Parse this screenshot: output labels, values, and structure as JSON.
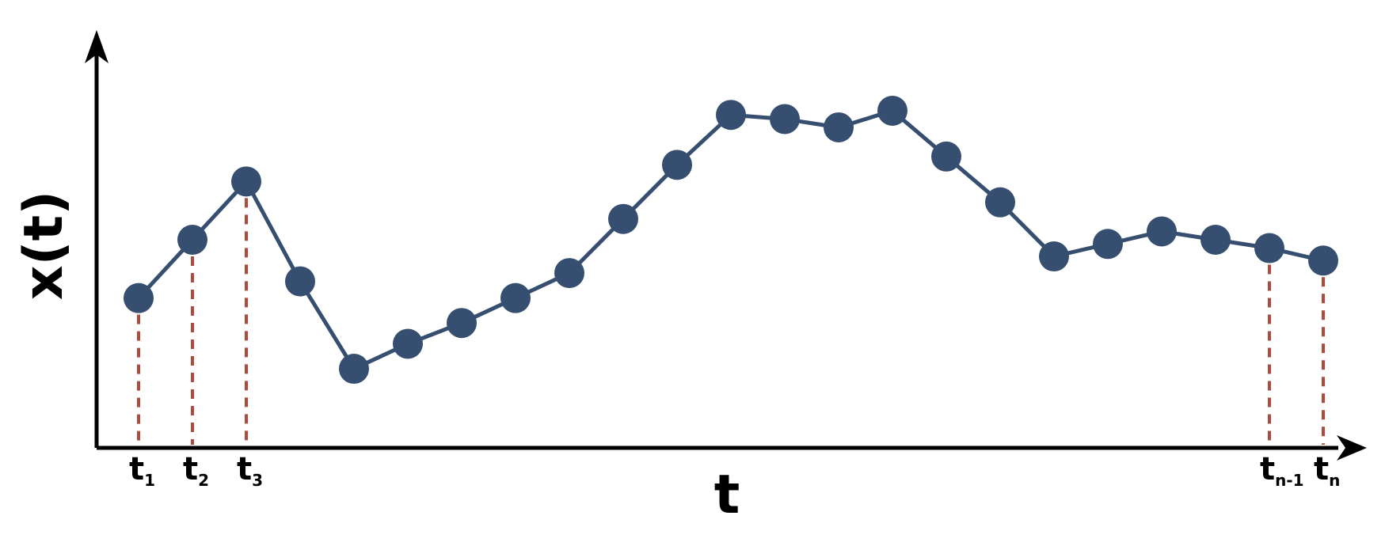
{
  "chart_data": {
    "type": "line",
    "xlabel": "t",
    "ylabel": "x(t)",
    "grid": false,
    "legend": "none",
    "ylim": [
      0,
      100
    ],
    "series": [
      {
        "values": [
          36,
          50,
          64,
          40,
          19,
          25,
          30,
          36,
          42,
          55,
          68,
          80,
          79,
          77,
          81,
          70,
          59,
          46,
          49,
          52,
          50,
          48,
          45
        ]
      }
    ],
    "tick_labels": [
      {
        "index": 0,
        "base": "t",
        "sub": "1"
      },
      {
        "index": 1,
        "base": "t",
        "sub": "2"
      },
      {
        "index": 2,
        "base": "t",
        "sub": "3"
      },
      {
        "index": 21,
        "base": "t",
        "sub": "n-1"
      },
      {
        "index": 22,
        "base": "t",
        "sub": "n"
      }
    ],
    "colors": {
      "series": "#364f70",
      "guides": "#b04a3e",
      "axes": "#000000"
    }
  }
}
